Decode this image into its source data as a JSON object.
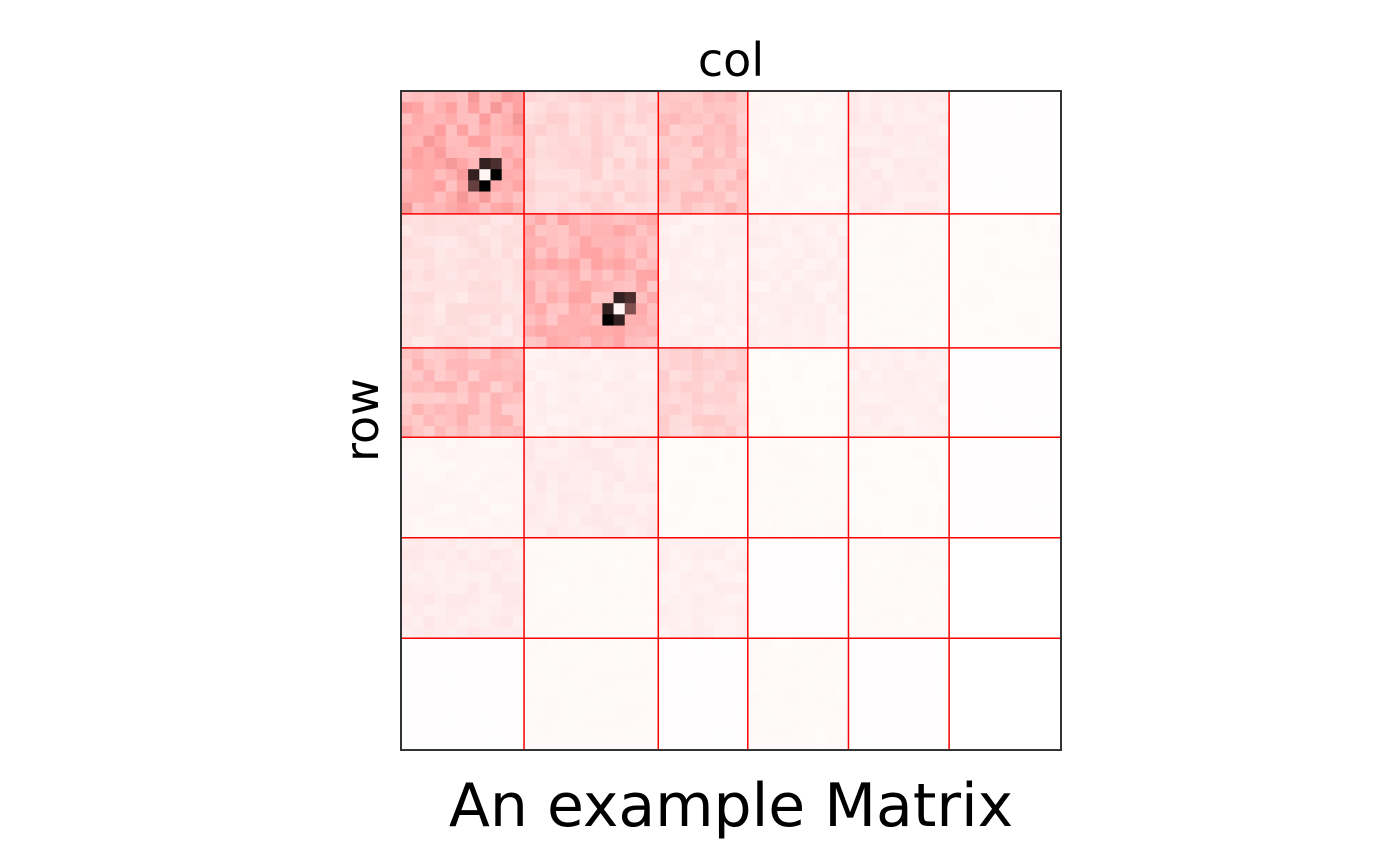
{
  "chart_data": {
    "type": "heatmap",
    "title": "An example Matrix",
    "xlabel": "col",
    "ylabel": "row",
    "grid": true,
    "legend": "none",
    "colors": {
      "low": "#ffffff",
      "mid": "#ff9e9e",
      "high": "#000000",
      "block_lines": "#ff0000",
      "frame": "#333333"
    },
    "block_sizes": [
      11,
      12,
      8,
      9,
      9,
      10
    ],
    "block_mean_intensity": [
      [
        0.42,
        0.2,
        0.3,
        0.05,
        0.1,
        0.01
      ],
      [
        0.15,
        0.38,
        0.08,
        0.08,
        0.03,
        0.02
      ],
      [
        0.32,
        0.08,
        0.22,
        0.02,
        0.08,
        0.01
      ],
      [
        0.05,
        0.1,
        0.02,
        0.03,
        0.02,
        0.01
      ],
      [
        0.1,
        0.03,
        0.08,
        0.01,
        0.03,
        0.0
      ],
      [
        0.01,
        0.03,
        0.01,
        0.03,
        0.01,
        0.0
      ]
    ],
    "dark_spots": [
      {
        "row": 6,
        "col": 7,
        "value": 0.9
      },
      {
        "row": 6,
        "col": 8,
        "value": 0.85
      },
      {
        "row": 7,
        "col": 6,
        "value": 0.9
      },
      {
        "row": 7,
        "col": 8,
        "value": 1.0
      },
      {
        "row": 8,
        "col": 7,
        "value": 1.0
      },
      {
        "row": 8,
        "col": 6,
        "value": 0.8
      },
      {
        "row": 7,
        "col": 7,
        "value": 0.05
      },
      {
        "row": 18,
        "col": 19,
        "value": 0.9
      },
      {
        "row": 18,
        "col": 20,
        "value": 0.85
      },
      {
        "row": 19,
        "col": 18,
        "value": 0.9
      },
      {
        "row": 19,
        "col": 20,
        "value": 0.75
      },
      {
        "row": 20,
        "col": 18,
        "value": 1.0
      },
      {
        "row": 20,
        "col": 19,
        "value": 0.9
      },
      {
        "row": 19,
        "col": 19,
        "value": 0.05
      }
    ]
  }
}
